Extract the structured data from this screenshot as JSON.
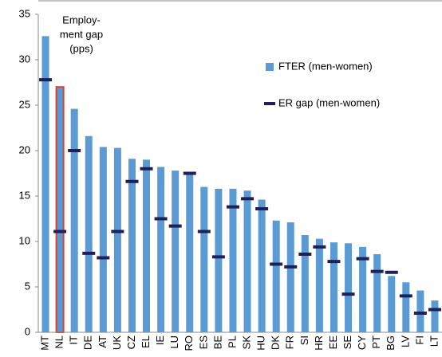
{
  "chart_data": {
    "type": "bar",
    "annotation": [
      "Employ-",
      "ment gap",
      "(pps)"
    ],
    "categories": [
      "MT",
      "NL",
      "IT",
      "DE",
      "AT",
      "UK",
      "CZ",
      "EL",
      "IE",
      "LU",
      "RO",
      "ES",
      "BE",
      "PL",
      "SK",
      "HU",
      "DK",
      "FR",
      "SI",
      "HR",
      "EE",
      "SE",
      "CY",
      "PT",
      "BG",
      "LV",
      "FI",
      "LT"
    ],
    "series": [
      {
        "name": "FTER (men-women)",
        "type": "bar",
        "color": "#5b9bd5",
        "values": [
          32.6,
          27.0,
          24.6,
          21.6,
          20.4,
          20.3,
          19.1,
          19.0,
          18.2,
          17.8,
          17.5,
          16.0,
          15.8,
          15.8,
          15.6,
          14.6,
          12.3,
          12.1,
          10.7,
          10.3,
          9.9,
          9.8,
          9.4,
          8.6,
          6.2,
          5.5,
          4.6,
          3.5
        ]
      },
      {
        "name": "ER gap (men-women)",
        "type": "marker",
        "color": "#1f1f5a",
        "values": [
          27.8,
          11.1,
          20.0,
          8.7,
          8.2,
          11.1,
          16.6,
          18.0,
          12.5,
          11.7,
          17.5,
          11.1,
          8.3,
          13.8,
          14.7,
          13.6,
          7.5,
          7.2,
          8.6,
          9.4,
          7.8,
          4.2,
          8.1,
          6.7,
          6.6,
          4.0,
          2.1,
          2.5
        ]
      }
    ],
    "highlight_category": "NL",
    "highlight_color": "#e0402a",
    "ylim": [
      0,
      35
    ],
    "yticks": [
      0,
      5,
      10,
      15,
      20,
      25,
      30,
      35
    ],
    "grid": false
  }
}
